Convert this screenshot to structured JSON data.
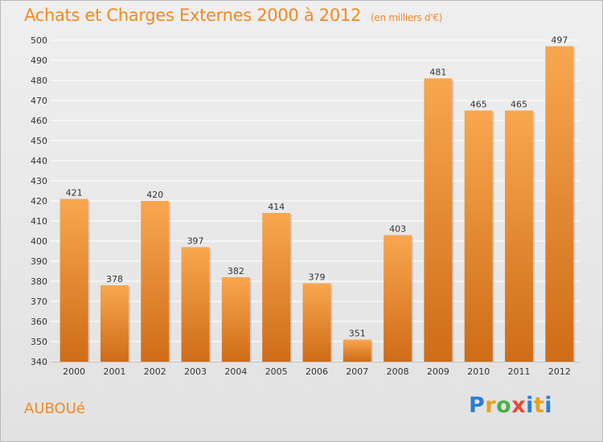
{
  "header": {
    "title": "Achats et Charges Externes 2000 à 2012",
    "subtitle": "(en milliers d'€)"
  },
  "footer": {
    "commune": "AUBOUé",
    "logo_letters": [
      "P",
      "r",
      "o",
      "x",
      "i",
      "t",
      "i"
    ],
    "logo_colors": [
      "#2a7fd4",
      "#e8a21c",
      "#4bb04a",
      "#e24a3a",
      "#2a7fd4",
      "#e8a21c",
      "#2a7fd4"
    ]
  },
  "colors": {
    "bar_light": "#f8a750",
    "bar_dark": "#cf6c17",
    "grid": "#ffffff",
    "axis_text": "#333333"
  },
  "chart_data": {
    "type": "bar",
    "categories": [
      "2000",
      "2001",
      "2002",
      "2003",
      "2004",
      "2005",
      "2006",
      "2007",
      "2008",
      "2009",
      "2010",
      "2011",
      "2012"
    ],
    "values": [
      421,
      378,
      420,
      397,
      382,
      414,
      379,
      351,
      403,
      481,
      465,
      465,
      497
    ],
    "yticks": [
      340,
      350,
      360,
      370,
      380,
      390,
      400,
      410,
      420,
      430,
      440,
      450,
      460,
      470,
      480,
      490,
      500
    ],
    "ylim": [
      340,
      500
    ],
    "grid": true,
    "xlabel": "",
    "ylabel": ""
  }
}
